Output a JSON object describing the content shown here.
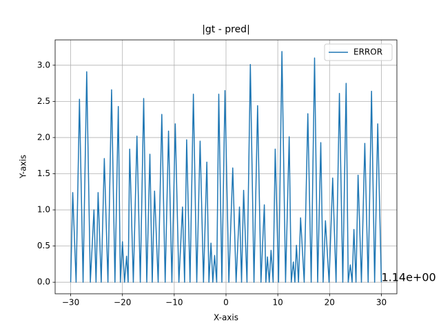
{
  "chart_data": {
    "type": "line",
    "title": "|gt - pred|",
    "xlabel": "X-axis",
    "ylabel": "Y-axis",
    "x": [
      -30,
      -29.6,
      -28.95,
      -28.3,
      -27.6,
      -26.9,
      -26.2,
      -25.5,
      -25.1,
      -24.7,
      -24.1,
      -23.5,
      -22.8,
      -22.1,
      -21.45,
      -20.8,
      -20.4,
      -20.0,
      -19.6,
      -19.2,
      -18.9,
      -18.6,
      -17.9,
      -17.2,
      -16.55,
      -15.9,
      -15.3,
      -14.7,
      -14.25,
      -13.8,
      -13.1,
      -12.4,
      -11.75,
      -11.1,
      -10.45,
      -9.8,
      -9.1,
      -8.4,
      -8.0,
      -7.6,
      -6.95,
      -6.3,
      -5.65,
      -5.0,
      -4.35,
      -3.7,
      -3.3,
      -2.9,
      -2.55,
      -2.2,
      -1.8,
      -1.4,
      -0.8,
      -0.2,
      0.55,
      1.3,
      1.95,
      2.6,
      3.0,
      3.4,
      4.05,
      4.7,
      5.4,
      6.1,
      6.75,
      7.4,
      7.7,
      8.0,
      8.35,
      8.7,
      9.1,
      9.5,
      10.15,
      10.8,
      11.5,
      12.2,
      12.6,
      13.0,
      13.3,
      13.6,
      14.0,
      14.4,
      15.1,
      15.8,
      16.45,
      17.1,
      17.7,
      18.3,
      18.75,
      19.2,
      19.9,
      20.6,
      21.25,
      21.9,
      22.55,
      23.2,
      23.6,
      24.0,
      24.35,
      24.7,
      25.1,
      25.5,
      26.15,
      26.8,
      27.45,
      28.1,
      28.7,
      29.3,
      30
    ],
    "series": [
      {
        "name": "ERROR",
        "color": "#1f77b4",
        "values": [
          0,
          1.24,
          0,
          2.53,
          0,
          2.91,
          0,
          1.0,
          0,
          1.24,
          0,
          1.71,
          0,
          2.66,
          0,
          2.43,
          0,
          0.56,
          0,
          0.36,
          0,
          1.84,
          0,
          2.02,
          0,
          2.54,
          0,
          1.77,
          0,
          1.26,
          0,
          2.32,
          0,
          2.09,
          0,
          2.19,
          0,
          1.04,
          0,
          1.97,
          0,
          2.6,
          0,
          1.95,
          0,
          1.66,
          0,
          0.54,
          0,
          0.37,
          0,
          2.6,
          0,
          2.65,
          0,
          1.58,
          0,
          1.04,
          0,
          1.27,
          0,
          3.01,
          0,
          2.44,
          0,
          1.07,
          0,
          0.35,
          0,
          0.44,
          0,
          1.84,
          0,
          3.19,
          0,
          2.01,
          0,
          0.28,
          0,
          0.51,
          0,
          0.89,
          0,
          2.33,
          0,
          3.1,
          0,
          1.93,
          0,
          0.85,
          0,
          1.44,
          0,
          2.61,
          0,
          2.75,
          0,
          0.24,
          0,
          0.73,
          0,
          1.48,
          0,
          1.92,
          0,
          2.64,
          0,
          2.19,
          0
        ]
      }
    ],
    "xlim": [
      -33,
      33
    ],
    "ylim": [
      -0.16,
      3.35
    ],
    "xticks": [
      {
        "value": -30,
        "label": "−30"
      },
      {
        "value": -20,
        "label": "−20"
      },
      {
        "value": -10,
        "label": "−10"
      },
      0,
      10,
      20,
      30
    ],
    "yticks": [
      {
        "value": 0,
        "label": "0.0"
      },
      {
        "value": 0.5,
        "label": "0.5"
      },
      {
        "value": 1,
        "label": "1.0"
      },
      {
        "value": 1.5,
        "label": "1.5"
      },
      {
        "value": 2,
        "label": "2.0"
      },
      {
        "value": 2.5,
        "label": "2.5"
      },
      {
        "value": 3,
        "label": "3.0"
      }
    ],
    "grid": true,
    "legend": "upper right",
    "annotation": {
      "text": "1.14e+00",
      "x": 30,
      "y": 0
    }
  }
}
